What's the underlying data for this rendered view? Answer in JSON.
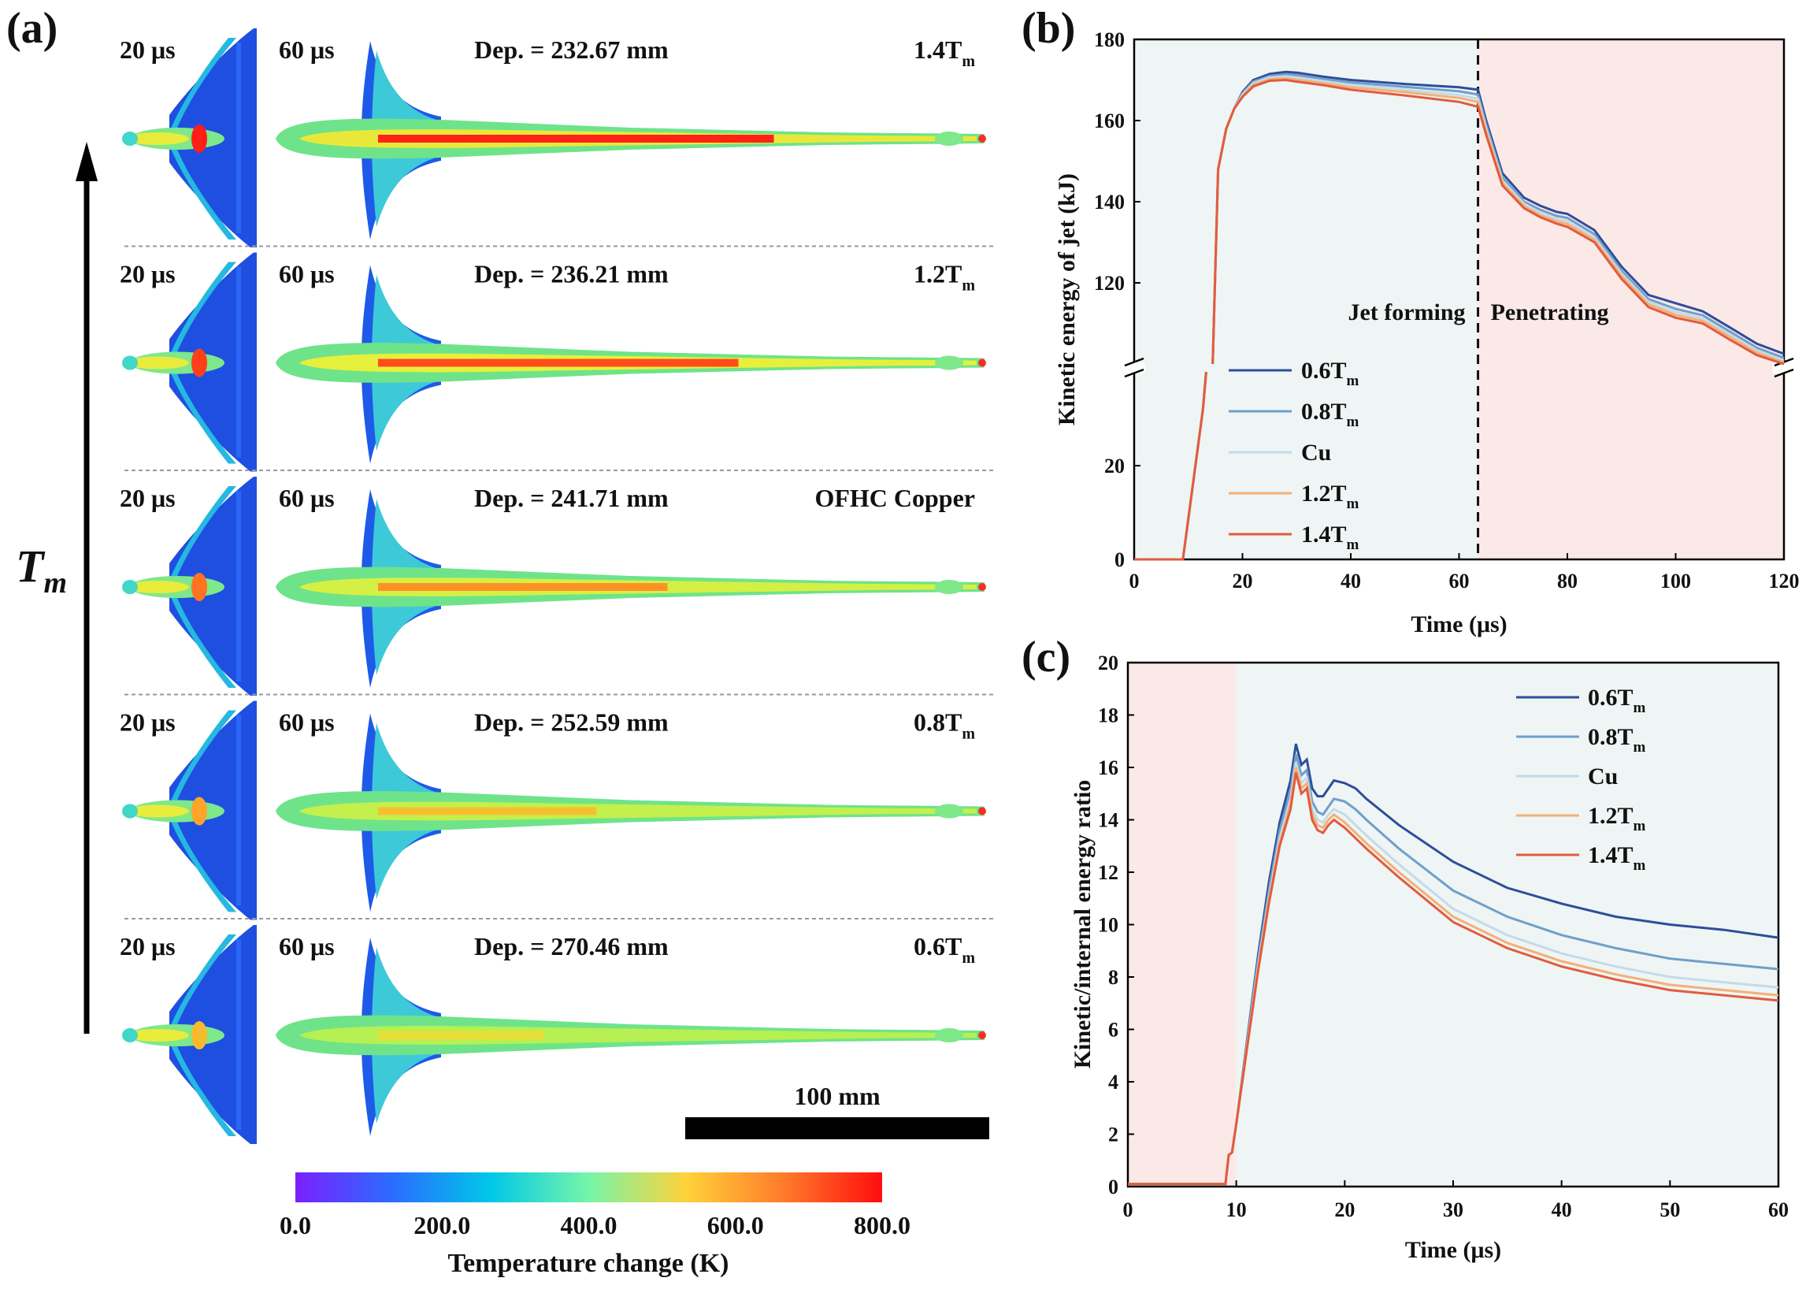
{
  "panel_a": {
    "label": "(a)",
    "arrow_label": "T",
    "arrow_label_sub": "m",
    "rows": [
      {
        "t1": "20 μs",
        "t2": "60 μs",
        "dep": "Dep. = 232.67 mm",
        "case": "1.4T",
        "case_sub": "m",
        "hot": 0.95,
        "tail": 0.85
      },
      {
        "t1": "20 μs",
        "t2": "60 μs",
        "dep": "Dep. = 236.21 mm",
        "case": "1.2T",
        "case_sub": "m",
        "hot": 0.8,
        "tail": 0.75
      },
      {
        "t1": "20 μs",
        "t2": "60 μs",
        "dep": "Dep. = 241.71 mm",
        "case": "OFHC Copper",
        "case_sub": "",
        "hot": 0.55,
        "tail": 0.55
      },
      {
        "t1": "20 μs",
        "t2": "60 μs",
        "dep": "Dep. = 252.59 mm",
        "case": "0.8T",
        "case_sub": "m",
        "hot": 0.3,
        "tail": 0.35
      },
      {
        "t1": "20 μs",
        "t2": "60 μs",
        "dep": "Dep. = 270.46 mm",
        "case": "0.6T",
        "case_sub": "m",
        "hot": 0.12,
        "tail": 0.2
      }
    ],
    "scalebar_label": "100 mm",
    "colorbar": {
      "ticks": [
        "0.0",
        "200.0",
        "400.0",
        "600.0",
        "800.0"
      ],
      "label": "Temperature change (K)",
      "colors": [
        "#7b1fff",
        "#2a6dff",
        "#00c8e8",
        "#76f5a8",
        "#ffd23a",
        "#ff7a2a",
        "#ff0d0d"
      ]
    }
  },
  "chart_data": [
    {
      "panel": "(b)",
      "type": "line",
      "xlabel": "Time (μs)",
      "ylabel": "Kinetic energy of jet (kJ)",
      "xlim": [
        0,
        120
      ],
      "x_ticks": [
        "0",
        "20",
        "40",
        "60",
        "80",
        "100",
        "120"
      ],
      "y_ticks_lower": [
        "0",
        "20"
      ],
      "y_ticks_upper": [
        "120",
        "140",
        "160",
        "180"
      ],
      "y_break": true,
      "y_lower_range": [
        0,
        40
      ],
      "y_upper_range": [
        100,
        180
      ],
      "region_split_x": 63.5,
      "annotations": [
        "Jet forming",
        "Penetrating"
      ],
      "background": {
        "left": "#eef5f4",
        "right": "#fbe9e8"
      },
      "legend_position": "lower-left",
      "x": [
        0,
        9,
        12.7,
        13.3,
        14.5,
        15.5,
        17,
        18.5,
        20,
        22,
        25,
        28,
        30,
        35,
        40,
        50,
        60,
        63.5,
        65,
        68,
        72,
        75,
        78,
        80,
        85,
        90,
        95,
        100,
        105,
        110,
        115,
        120
      ],
      "series": [
        {
          "name": "0.6Tm",
          "color": "#2e4d9a",
          "values": [
            0,
            0,
            32,
            40,
            100,
            148,
            158,
            163,
            167,
            170,
            171.5,
            172,
            171.8,
            170.8,
            170,
            169,
            168.2,
            167.6,
            160,
            147,
            141,
            139,
            137.5,
            137,
            133,
            124,
            117,
            115,
            113,
            109,
            105,
            102.5
          ]
        },
        {
          "name": "0.8Tm",
          "color": "#6f9fcb",
          "values": [
            0,
            0,
            32,
            40,
            100,
            148,
            158,
            163,
            166.7,
            169.6,
            171,
            171.4,
            171.2,
            170.2,
            169.4,
            168.3,
            167.2,
            166.4,
            159,
            146,
            140,
            138,
            136.5,
            136,
            132,
            123,
            116,
            113.6,
            112,
            108,
            104,
            101.5
          ]
        },
        {
          "name": "Cu",
          "color": "#c3dbe9",
          "values": [
            0,
            0,
            32,
            40,
            100,
            148,
            158,
            163,
            166.4,
            169.2,
            170.6,
            170.9,
            170.6,
            169.7,
            168.8,
            167.6,
            166.3,
            165.4,
            158,
            145.2,
            139.5,
            137.3,
            135.8,
            135.2,
            131.2,
            122.3,
            115.3,
            112.8,
            111.2,
            107.3,
            103.4,
            100.9
          ]
        },
        {
          "name": "1.2Tm",
          "color": "#f3b077",
          "values": [
            0,
            0,
            32,
            40,
            100,
            148,
            158,
            163,
            166.1,
            168.8,
            170.2,
            170.4,
            170.1,
            169.2,
            168.2,
            167,
            165.6,
            164.6,
            157.3,
            144.6,
            138.9,
            136.7,
            135.2,
            134.5,
            130.6,
            121.7,
            114.7,
            112.1,
            110.6,
            106.7,
            102.8,
            100.4
          ]
        },
        {
          "name": "1.4Tm",
          "color": "#e25b3e",
          "values": [
            0,
            0,
            32,
            40,
            100,
            148,
            158,
            163,
            165.8,
            168.4,
            169.8,
            170,
            169.6,
            168.7,
            167.6,
            166.2,
            164.6,
            163.4,
            156.5,
            144,
            138.4,
            136.2,
            134.6,
            133.8,
            130,
            121,
            114,
            111.4,
            110,
            106,
            102.2,
            100
          ]
        }
      ]
    },
    {
      "panel": "(c)",
      "type": "line",
      "xlabel": "Time (μs)",
      "ylabel": "Kinetic/internal energy ratio",
      "xlim": [
        0,
        60
      ],
      "ylim": [
        0,
        20
      ],
      "x_ticks": [
        "0",
        "10",
        "20",
        "30",
        "40",
        "50",
        "60"
      ],
      "y_ticks": [
        "0",
        "2",
        "4",
        "6",
        "8",
        "10",
        "12",
        "14",
        "16",
        "18",
        "20"
      ],
      "region_split_x": 10,
      "background": {
        "left": "#fbe9e8",
        "right": "#eef5f4"
      },
      "legend_position": "top-right",
      "x": [
        0,
        9,
        9.3,
        9.6,
        10,
        11,
        12,
        13,
        14,
        15,
        15.5,
        16,
        16.5,
        17,
        17.5,
        18,
        18.5,
        19,
        20,
        21,
        22,
        25,
        30,
        35,
        40,
        45,
        50,
        55,
        60
      ],
      "series": [
        {
          "name": "0.6Tm",
          "color": "#2e4d9a",
          "values": [
            0.1,
            0.1,
            1.2,
            1.3,
            2.4,
            5.6,
            8.8,
            11.6,
            13.9,
            15.5,
            16.9,
            16.1,
            16.3,
            15.2,
            14.9,
            14.9,
            15.2,
            15.5,
            15.4,
            15.2,
            14.8,
            13.8,
            12.4,
            11.4,
            10.8,
            10.3,
            10,
            9.8,
            9.5
          ]
        },
        {
          "name": "0.8Tm",
          "color": "#6f9fcb",
          "values": [
            0.1,
            0.1,
            1.2,
            1.3,
            2.4,
            5.5,
            8.6,
            11.3,
            13.6,
            15.1,
            16.5,
            15.7,
            15.9,
            14.7,
            14.3,
            14.2,
            14.5,
            14.8,
            14.7,
            14.4,
            14,
            12.9,
            11.3,
            10.3,
            9.6,
            9.1,
            8.7,
            8.5,
            8.3
          ]
        },
        {
          "name": "Cu",
          "color": "#c3dbe9",
          "values": [
            0.1,
            0.1,
            1.2,
            1.3,
            2.4,
            5.4,
            8.4,
            11,
            13.3,
            14.8,
            16.2,
            15.4,
            15.6,
            14.4,
            14,
            13.9,
            14.2,
            14.4,
            14.2,
            13.8,
            13.4,
            12.3,
            10.6,
            9.6,
            8.9,
            8.4,
            8,
            7.8,
            7.6
          ]
        },
        {
          "name": "1.2Tm",
          "color": "#f3b077",
          "values": [
            0.1,
            0.1,
            1.2,
            1.3,
            2.4,
            5.4,
            8.3,
            10.9,
            13.1,
            14.6,
            16,
            15.2,
            15.4,
            14.2,
            13.8,
            13.7,
            14,
            14.2,
            13.9,
            13.5,
            13.1,
            12,
            10.3,
            9.3,
            8.6,
            8.1,
            7.7,
            7.5,
            7.3
          ]
        },
        {
          "name": "1.4Tm",
          "color": "#e25b3e",
          "values": [
            0.1,
            0.1,
            1.2,
            1.3,
            2.4,
            5.3,
            8.2,
            10.8,
            13,
            14.4,
            15.8,
            15,
            15.2,
            14,
            13.6,
            13.5,
            13.8,
            14,
            13.7,
            13.3,
            12.9,
            11.8,
            10.1,
            9.1,
            8.4,
            7.9,
            7.5,
            7.3,
            7.1
          ]
        }
      ]
    }
  ],
  "panel_b_legend": [
    {
      "main": "0.6T",
      "sub": "m"
    },
    {
      "main": "0.8T",
      "sub": "m"
    },
    {
      "main": "Cu",
      "sub": ""
    },
    {
      "main": "1.2T",
      "sub": "m"
    },
    {
      "main": "1.4T",
      "sub": "m"
    }
  ]
}
